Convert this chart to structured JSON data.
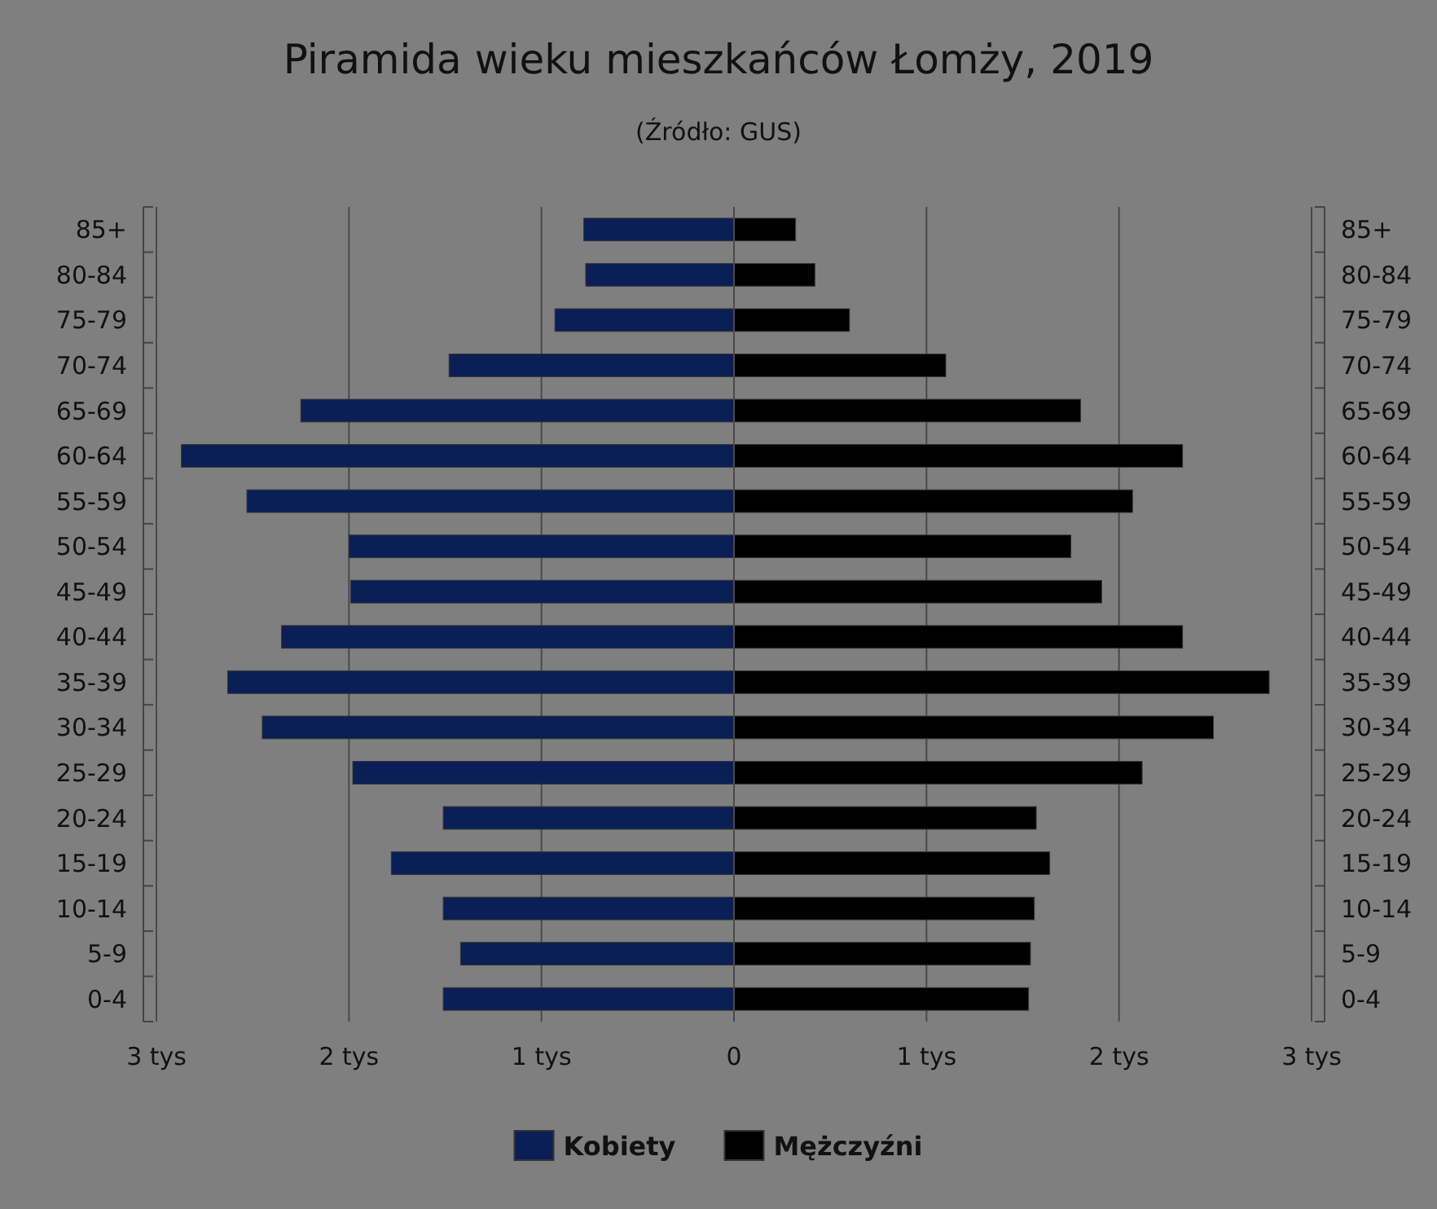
{
  "chart_data": {
    "type": "bar",
    "orientation": "horizontal",
    "stacked": true,
    "title": "Piramida wieku mieszkańców Łomży, 2019",
    "subtitle": "(Źródło: GUS)",
    "categories": [
      "85+",
      "80-84",
      "75-79",
      "70-74",
      "65-69",
      "60-64",
      "55-59",
      "50-54",
      "45-49",
      "40-44",
      "35-39",
      "30-34",
      "25-29",
      "20-24",
      "15-19",
      "10-14",
      "5-9",
      "0-4"
    ],
    "series": [
      {
        "name": "Kobiety",
        "color": "#0a1f55",
        "values": [
          -0.78,
          -0.77,
          -0.93,
          -1.48,
          -2.25,
          -2.87,
          -2.53,
          -2.0,
          -1.99,
          -2.35,
          -2.63,
          -2.45,
          -1.98,
          -1.51,
          -1.78,
          -1.51,
          -1.42,
          -1.51
        ]
      },
      {
        "name": "Mężczyźni",
        "color": "#000000",
        "values": [
          0.32,
          0.42,
          0.6,
          1.1,
          1.8,
          2.33,
          2.07,
          1.75,
          1.91,
          2.33,
          2.78,
          2.49,
          2.12,
          1.57,
          1.64,
          1.56,
          1.54,
          1.53
        ]
      }
    ],
    "xlim": [
      -3,
      3
    ],
    "xticks": [
      {
        "value": -3,
        "label": "3 tys"
      },
      {
        "value": -2,
        "label": "2 tys"
      },
      {
        "value": -1,
        "label": "1 tys"
      },
      0,
      {
        "value": 1,
        "label": "1 tys"
      },
      {
        "value": 2,
        "label": "2 tys"
      },
      {
        "value": 3,
        "label": "3 tys"
      }
    ],
    "grid": "x",
    "legend": "bottom"
  }
}
